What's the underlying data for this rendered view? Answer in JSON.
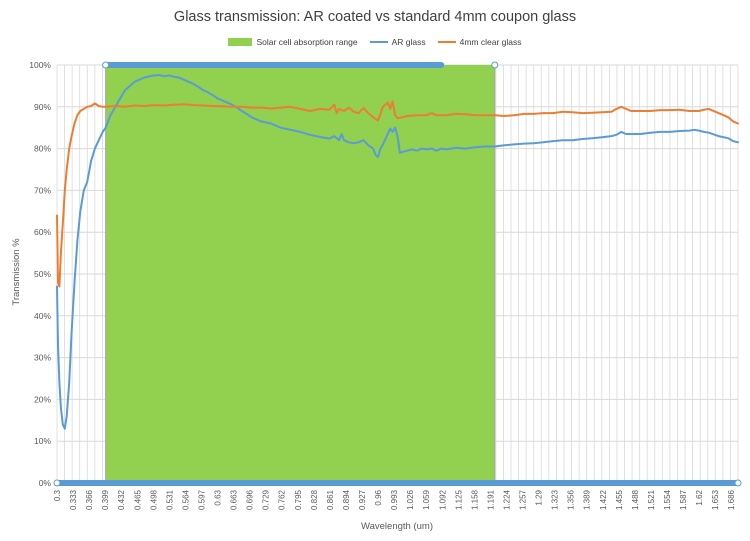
{
  "chart_data": {
    "type": "line",
    "title": "Glass transmission: AR coated vs standard 4mm coupon glass",
    "xlabel": "Wavelength (um)",
    "ylabel": "Transmission %",
    "ylim": [
      0,
      100
    ],
    "yticks": [
      "0%",
      "10%",
      "20%",
      "30%",
      "40%",
      "50%",
      "60%",
      "70%",
      "80%",
      "90%",
      "100%"
    ],
    "xlim": [
      0.3,
      1.7
    ],
    "xticks": [
      "0.3",
      "0.333",
      "0.366",
      "0.399",
      "0.432",
      "0.465",
      "0.498",
      "0.531",
      "0.564",
      "0.597",
      "0.63",
      "0.663",
      "0.696",
      "0.729",
      "0.762",
      "0.795",
      "0.828",
      "0.861",
      "0.894",
      "0.927",
      "0.96",
      "0.993",
      "1.026",
      "1.059",
      "1.092",
      "1.125",
      "1.158",
      "1.191",
      "1.224",
      "1.257",
      "1.29",
      "1.323",
      "1.356",
      "1.389",
      "1.422",
      "1.455",
      "1.488",
      "1.521",
      "1.554",
      "1.587",
      "1.62",
      "1.653",
      "1.686"
    ],
    "legend_position": "top",
    "grid": true,
    "colors": {
      "band": "#92d050",
      "ar": "#5b9bd5",
      "clear": "#ed7d31",
      "grid": "#d9d9d9"
    },
    "band": {
      "name": "Solar cell absorption range",
      "x_start": 0.4,
      "x_end": 1.2,
      "value": 100
    },
    "series": [
      {
        "name": "AR glass",
        "x": [
          0.3,
          0.302,
          0.305,
          0.308,
          0.312,
          0.316,
          0.32,
          0.325,
          0.33,
          0.336,
          0.342,
          0.348,
          0.355,
          0.362,
          0.37,
          0.378,
          0.386,
          0.394,
          0.4,
          0.41,
          0.42,
          0.43,
          0.44,
          0.45,
          0.46,
          0.47,
          0.48,
          0.49,
          0.5,
          0.51,
          0.52,
          0.53,
          0.54,
          0.55,
          0.56,
          0.57,
          0.58,
          0.59,
          0.6,
          0.61,
          0.62,
          0.63,
          0.64,
          0.65,
          0.66,
          0.67,
          0.68,
          0.69,
          0.7,
          0.72,
          0.74,
          0.76,
          0.78,
          0.8,
          0.82,
          0.84,
          0.86,
          0.87,
          0.88,
          0.885,
          0.89,
          0.9,
          0.91,
          0.92,
          0.93,
          0.94,
          0.95,
          0.955,
          0.96,
          0.965,
          0.97,
          0.98,
          0.985,
          0.99,
          0.995,
          1.0,
          1.005,
          1.01,
          1.02,
          1.03,
          1.04,
          1.05,
          1.06,
          1.07,
          1.08,
          1.09,
          1.1,
          1.12,
          1.14,
          1.16,
          1.18,
          1.2,
          1.22,
          1.24,
          1.26,
          1.28,
          1.3,
          1.32,
          1.34,
          1.36,
          1.38,
          1.4,
          1.42,
          1.44,
          1.45,
          1.46,
          1.47,
          1.5,
          1.52,
          1.54,
          1.56,
          1.58,
          1.6,
          1.61,
          1.62,
          1.63,
          1.64,
          1.66,
          1.68,
          1.69,
          1.7
        ],
        "y": [
          47,
          33,
          24,
          18,
          14,
          13,
          16,
          24,
          36,
          48,
          58,
          65,
          70,
          72,
          77,
          80,
          82,
          84,
          85,
          88,
          90,
          92,
          94,
          95,
          96,
          96.5,
          97,
          97.3,
          97.5,
          97.6,
          97.3,
          97.5,
          97.2,
          97,
          96.5,
          96,
          95.5,
          94.8,
          94,
          93.5,
          92.8,
          92,
          91.5,
          91,
          90.5,
          89.8,
          89,
          88.3,
          87.5,
          86.5,
          86,
          85,
          84.5,
          84,
          83.3,
          82.8,
          82.4,
          83,
          82,
          83.5,
          82,
          81.5,
          81.3,
          81.5,
          82,
          80.8,
          80,
          78.5,
          78,
          80,
          81,
          83.5,
          84.8,
          84,
          85,
          83,
          79,
          79.2,
          79.5,
          79.8,
          79.5,
          80,
          79.8,
          80,
          79.5,
          80,
          79.8,
          80.2,
          80,
          80.3,
          80.5,
          80.5,
          80.8,
          81,
          81.2,
          81.3,
          81.5,
          81.8,
          82,
          82,
          82.3,
          82.5,
          82.7,
          83,
          83.3,
          84,
          83.5,
          83.5,
          83.8,
          84,
          84,
          84.2,
          84.3,
          84.5,
          84.3,
          84,
          83.8,
          83,
          82.5,
          81.8,
          81.5
        ]
      },
      {
        "name": "4mm clear glass",
        "x": [
          0.3,
          0.302,
          0.305,
          0.308,
          0.312,
          0.316,
          0.32,
          0.325,
          0.33,
          0.336,
          0.342,
          0.348,
          0.355,
          0.362,
          0.37,
          0.378,
          0.386,
          0.394,
          0.4,
          0.42,
          0.44,
          0.46,
          0.48,
          0.5,
          0.52,
          0.54,
          0.56,
          0.58,
          0.6,
          0.62,
          0.64,
          0.66,
          0.68,
          0.7,
          0.72,
          0.74,
          0.76,
          0.78,
          0.8,
          0.82,
          0.84,
          0.86,
          0.87,
          0.875,
          0.88,
          0.89,
          0.9,
          0.91,
          0.92,
          0.93,
          0.94,
          0.95,
          0.96,
          0.97,
          0.98,
          0.985,
          0.99,
          0.995,
          1.0,
          1.01,
          1.02,
          1.04,
          1.06,
          1.07,
          1.08,
          1.1,
          1.12,
          1.14,
          1.16,
          1.18,
          1.2,
          1.22,
          1.24,
          1.26,
          1.28,
          1.3,
          1.32,
          1.34,
          1.36,
          1.38,
          1.4,
          1.42,
          1.44,
          1.45,
          1.46,
          1.48,
          1.5,
          1.52,
          1.54,
          1.56,
          1.58,
          1.6,
          1.62,
          1.63,
          1.64,
          1.66,
          1.68,
          1.69,
          1.7
        ],
        "y": [
          64,
          48,
          47,
          55,
          62,
          70,
          75,
          80,
          83,
          86,
          88,
          89,
          89.5,
          90,
          90.2,
          90.8,
          90.2,
          90,
          90,
          90.2,
          90,
          90.3,
          90.2,
          90.4,
          90.3,
          90.5,
          90.6,
          90.4,
          90.3,
          90.2,
          90.1,
          90,
          90,
          89.8,
          89.8,
          89.6,
          89.8,
          90,
          89.5,
          89,
          89.5,
          89.3,
          90.5,
          88.5,
          89.5,
          89,
          89.8,
          88.8,
          88.5,
          89.7,
          88.5,
          87.5,
          86.7,
          90,
          91,
          89.5,
          91.3,
          88,
          87.3,
          87.5,
          87.8,
          88,
          88,
          88.5,
          88,
          88,
          88.3,
          88.2,
          88,
          88,
          88,
          87.8,
          88,
          88.3,
          88.3,
          88.5,
          88.5,
          88.8,
          88.7,
          88.5,
          88.6,
          88.7,
          88.8,
          89.5,
          90,
          89,
          89,
          89,
          89.2,
          89.2,
          89.3,
          89,
          89,
          89.3,
          89.5,
          88.5,
          87.5,
          86.5,
          86
        ]
      }
    ]
  }
}
